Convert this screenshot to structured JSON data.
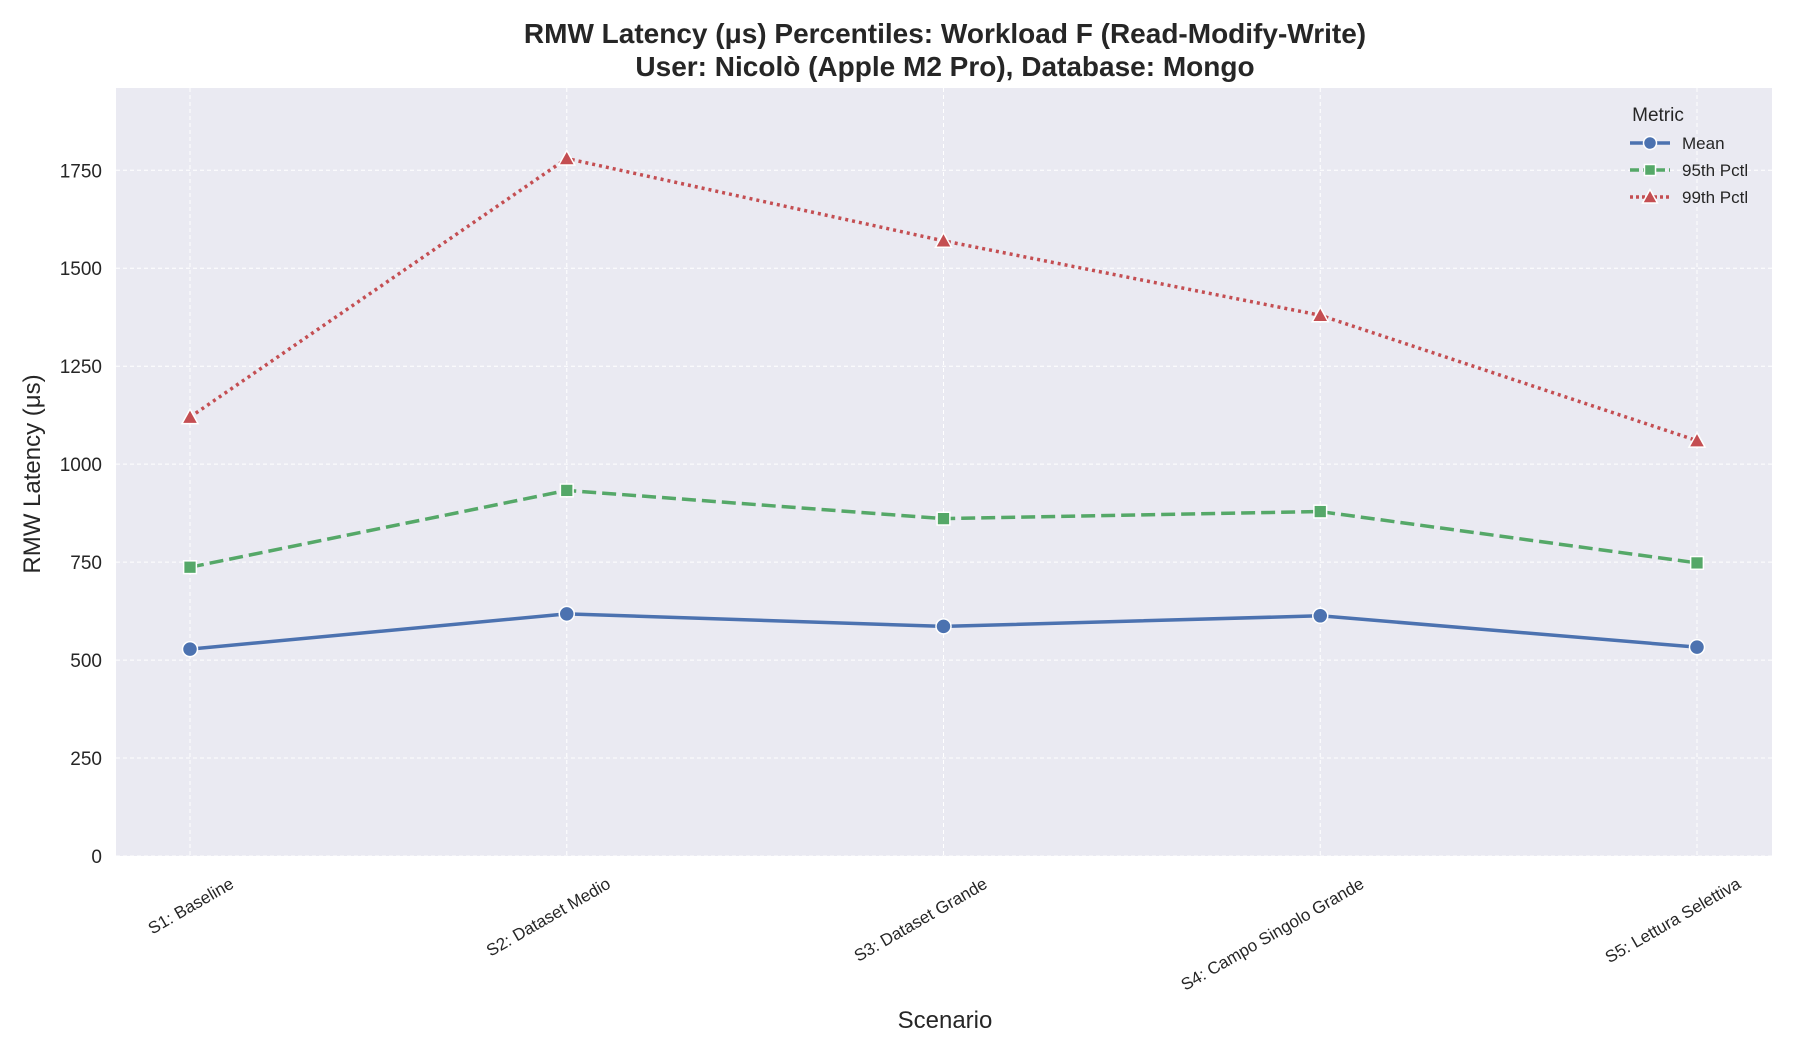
{
  "chart_data": {
    "type": "line",
    "title_line1": "RMW Latency (μs) Percentiles: Workload F (Read-Modify-Write)",
    "title_line2": "User: Nicolò (Apple M2 Pro), Database: Mongo",
    "xlabel": "Scenario",
    "ylabel": "RMW Latency (μs)",
    "ylim": [
      0,
      1960
    ],
    "yticks": [
      "0",
      "250",
      "500",
      "750",
      "1000",
      "1250",
      "1500",
      "1750"
    ],
    "categories": [
      "S1: Baseline",
      "S2: Dataset Medio",
      "S3: Dataset Grande",
      "S4: Campo Singolo Grande",
      "S5: Lettura Selettiva"
    ],
    "grid": true,
    "legend": {
      "title": "Metric",
      "placement": "top-right"
    },
    "series": [
      {
        "name": "Mean",
        "values": [
          528,
          618,
          586,
          613,
          533
        ],
        "color": "#4c72b0",
        "marker": "circle",
        "dash": "solid"
      },
      {
        "name": "95th Pctl",
        "values": [
          737,
          933,
          861,
          879,
          748
        ],
        "color": "#55a868",
        "marker": "square",
        "dash": "dashed"
      },
      {
        "name": "99th Pctl",
        "values": [
          1120,
          1780,
          1570,
          1380,
          1060
        ],
        "color": "#c44e52",
        "marker": "triangle",
        "dash": "dotted"
      }
    ]
  }
}
